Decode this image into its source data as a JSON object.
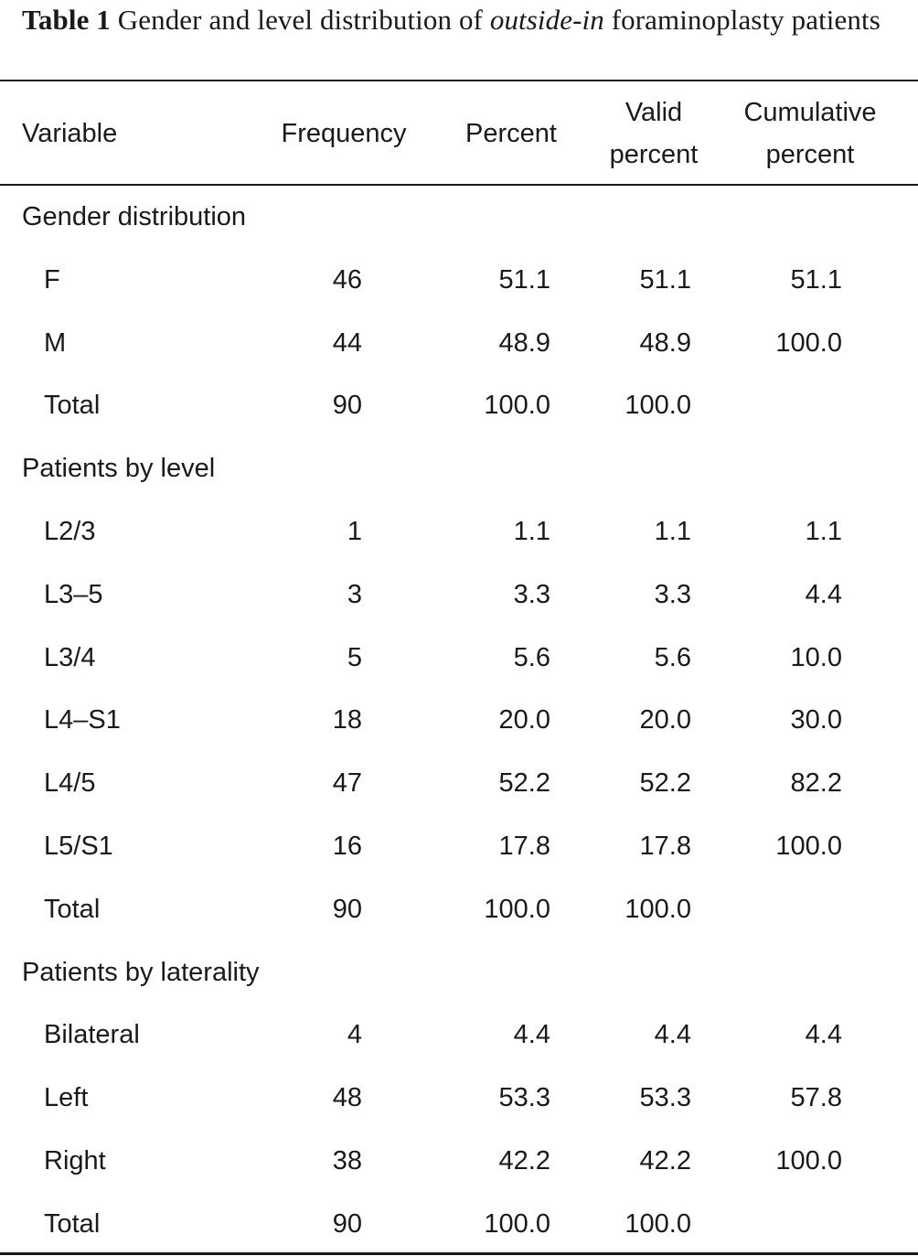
{
  "caption": {
    "label": "Table 1",
    "text_before": "Gender and level distribution of",
    "text_italic": "outside-in",
    "text_after": "foraminoplasty patients"
  },
  "headers": {
    "variable": "Variable",
    "frequency": "Frequency",
    "percent": "Percent",
    "valid_percent_1": "Valid",
    "valid_percent_2": "percent",
    "cumulative_percent_1": "Cumulative",
    "cumulative_percent_2": "percent"
  },
  "sections": [
    {
      "title": "Gender distribution",
      "rows": [
        {
          "label": "F",
          "frequency": "46",
          "percent": "51.1",
          "valid": "51.1",
          "cumulative": "51.1"
        },
        {
          "label": "M",
          "frequency": "44",
          "percent": "48.9",
          "valid": "48.9",
          "cumulative": "100.0"
        },
        {
          "label": "Total",
          "frequency": "90",
          "percent": "100.0",
          "valid": "100.0",
          "cumulative": ""
        }
      ]
    },
    {
      "title": "Patients by level",
      "rows": [
        {
          "label": "L2/3",
          "frequency": "1",
          "percent": "1.1",
          "valid": "1.1",
          "cumulative": "1.1"
        },
        {
          "label": "L3–5",
          "frequency": "3",
          "percent": "3.3",
          "valid": "3.3",
          "cumulative": "4.4"
        },
        {
          "label": "L3/4",
          "frequency": "5",
          "percent": "5.6",
          "valid": "5.6",
          "cumulative": "10.0"
        },
        {
          "label": "L4–S1",
          "frequency": "18",
          "percent": "20.0",
          "valid": "20.0",
          "cumulative": "30.0"
        },
        {
          "label": "L4/5",
          "frequency": "47",
          "percent": "52.2",
          "valid": "52.2",
          "cumulative": "82.2"
        },
        {
          "label": "L5/S1",
          "frequency": "16",
          "percent": "17.8",
          "valid": "17.8",
          "cumulative": "100.0"
        },
        {
          "label": "Total",
          "frequency": "90",
          "percent": "100.0",
          "valid": "100.0",
          "cumulative": ""
        }
      ]
    },
    {
      "title": "Patients by laterality",
      "rows": [
        {
          "label": "Bilateral",
          "frequency": "4",
          "percent": "4.4",
          "valid": "4.4",
          "cumulative": "4.4"
        },
        {
          "label": "Left",
          "frequency": "48",
          "percent": "53.3",
          "valid": "53.3",
          "cumulative": "57.8"
        },
        {
          "label": "Right",
          "frequency": "38",
          "percent": "42.2",
          "valid": "42.2",
          "cumulative": "100.0"
        },
        {
          "label": "Total",
          "frequency": "90",
          "percent": "100.0",
          "valid": "100.0",
          "cumulative": ""
        }
      ]
    }
  ]
}
